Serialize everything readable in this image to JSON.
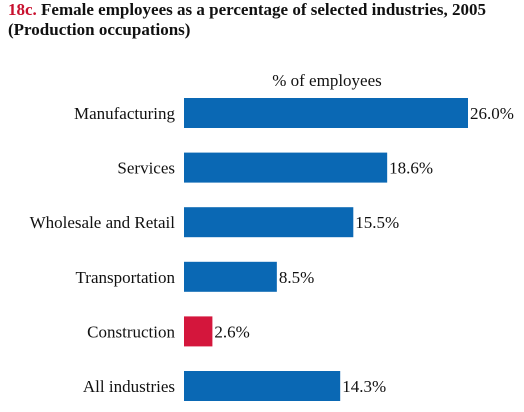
{
  "chart_number": "18c.",
  "title": "Female employees as a percentage of selected industries, 2005",
  "subtitle": "(Production occupations)",
  "colors": {
    "default_bar": "#0a68b4",
    "highlight_bar": "#d4163c",
    "title_number": "#c8102e"
  },
  "chart_data": {
    "type": "bar",
    "orientation": "horizontal",
    "title": "Female employees as a percentage of selected industries, 2005",
    "subtitle": "(Production occupations)",
    "xlabel": "% of employees",
    "ylabel": "",
    "xlim": [
      0,
      26.0
    ],
    "grid": false,
    "categories": [
      "Manufacturing",
      "Services",
      "Wholesale and Retail",
      "Transportation",
      "Construction",
      "All industries"
    ],
    "values": [
      26.0,
      18.6,
      15.5,
      8.5,
      2.6,
      14.3
    ],
    "value_labels": [
      "26.0%",
      "18.6%",
      "15.5%",
      "8.5%",
      "2.6%",
      "14.3%"
    ],
    "highlighted_category": "Construction"
  }
}
